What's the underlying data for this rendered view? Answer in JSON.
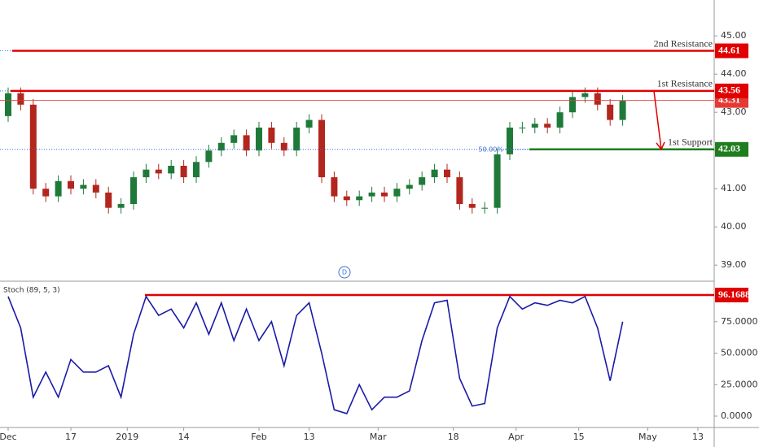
{
  "chart_data": [
    {
      "type": "candlestick",
      "x": [
        0,
        2,
        4,
        6,
        8,
        10,
        12,
        14,
        16,
        18,
        20,
        22,
        24,
        26,
        28,
        30,
        32,
        34,
        36,
        38,
        40,
        42,
        44,
        46,
        48,
        50,
        52,
        54,
        56,
        58,
        60,
        62,
        64,
        66,
        68,
        70,
        72,
        74,
        76,
        78,
        80,
        82,
        84,
        86,
        88,
        90,
        92,
        94,
        96,
        98
      ],
      "open": [
        42.9,
        43.5,
        43.2,
        41.0,
        40.8,
        41.2,
        41.0,
        41.1,
        40.9,
        40.5,
        40.6,
        41.3,
        41.5,
        41.4,
        41.6,
        41.3,
        41.7,
        42.0,
        42.2,
        42.4,
        42.0,
        42.6,
        42.2,
        42.0,
        42.6,
        42.8,
        41.3,
        40.8,
        40.7,
        40.8,
        40.9,
        40.8,
        41.0,
        41.1,
        41.3,
        41.5,
        41.3,
        40.6,
        40.5,
        40.5,
        41.9,
        42.6,
        42.6,
        42.7,
        42.6,
        43.0,
        43.4,
        43.5,
        43.2,
        42.8
      ],
      "high": [
        43.65,
        43.65,
        43.35,
        41.15,
        41.35,
        41.35,
        41.25,
        41.25,
        41.05,
        40.75,
        41.45,
        41.65,
        41.65,
        41.75,
        41.75,
        41.85,
        42.15,
        42.35,
        42.55,
        42.55,
        42.75,
        42.75,
        42.35,
        42.75,
        42.95,
        42.95,
        41.45,
        40.95,
        40.95,
        41.05,
        41.05,
        41.15,
        41.25,
        41.45,
        41.65,
        41.65,
        41.45,
        40.75,
        40.65,
        42.05,
        42.75,
        42.75,
        42.85,
        42.85,
        43.15,
        43.55,
        43.65,
        43.65,
        43.35,
        43.45
      ],
      "low": [
        42.75,
        43.05,
        40.85,
        40.65,
        40.65,
        40.85,
        40.85,
        40.75,
        40.35,
        40.35,
        40.45,
        41.15,
        41.25,
        41.25,
        41.15,
        41.15,
        41.55,
        41.85,
        42.05,
        41.85,
        41.85,
        42.05,
        41.85,
        41.85,
        42.45,
        41.15,
        40.65,
        40.55,
        40.55,
        40.65,
        40.65,
        40.65,
        40.85,
        40.95,
        41.15,
        41.15,
        40.45,
        40.35,
        40.35,
        40.35,
        41.75,
        42.45,
        42.45,
        42.45,
        42.45,
        42.85,
        43.25,
        43.05,
        42.65,
        42.65
      ],
      "close": [
        43.5,
        43.2,
        41.0,
        40.8,
        41.2,
        41.0,
        41.1,
        40.9,
        40.5,
        40.6,
        41.3,
        41.5,
        41.4,
        41.6,
        41.3,
        41.7,
        42.0,
        42.2,
        42.4,
        42.0,
        42.6,
        42.2,
        42.0,
        42.6,
        42.8,
        41.3,
        40.8,
        40.7,
        40.8,
        40.9,
        40.8,
        41.0,
        41.1,
        41.3,
        41.5,
        41.3,
        40.6,
        40.5,
        40.5,
        41.9,
        42.6,
        42.6,
        42.7,
        42.6,
        43.0,
        43.4,
        43.5,
        43.2,
        42.8,
        43.3
      ],
      "up_color": "#1f7a3a",
      "down_color": "#b3261e",
      "xlim": [
        -1.3,
        112.6
      ],
      "ylim": [
        38.6,
        45.94
      ],
      "yticks": [
        {
          "value": 39,
          "label": "39.00"
        },
        {
          "value": 40,
          "label": "40.00"
        },
        {
          "value": 41,
          "label": "41.00"
        },
        {
          "value": 42,
          "label": "42.00"
        },
        {
          "value": 43,
          "label": "43.00"
        },
        {
          "value": 44,
          "label": "44.00"
        },
        {
          "value": 45,
          "label": "45.00"
        }
      ],
      "last_price": {
        "value": 43.31,
        "color": "#e53935"
      },
      "levels": [
        {
          "name": "2nd Resistance",
          "value": 44.61,
          "color": "#e00000"
        },
        {
          "name": "1st Resistance",
          "value": 43.56,
          "color": "#e00000"
        },
        {
          "name": "1st Support",
          "value": 42.03,
          "color": "#1e7d1e"
        }
      ],
      "annotations": [
        "50.00%",
        "D"
      ]
    },
    {
      "type": "line",
      "title": "Stoch (89, 5, 3)",
      "x": [
        0,
        2,
        4,
        6,
        8,
        10,
        12,
        14,
        16,
        18,
        20,
        22,
        24,
        26,
        28,
        30,
        32,
        34,
        36,
        38,
        40,
        42,
        44,
        46,
        48,
        50,
        52,
        54,
        56,
        58,
        60,
        62,
        64,
        66,
        68,
        70,
        72,
        74,
        76,
        78,
        80,
        82,
        84,
        86,
        88,
        90,
        92,
        94,
        96,
        98
      ],
      "values": [
        95,
        70,
        15,
        35,
        15,
        45,
        35,
        35,
        40,
        15,
        65,
        95,
        80,
        85,
        70,
        90,
        65,
        90,
        60,
        85,
        60,
        75,
        40,
        80,
        90,
        50,
        5,
        2,
        25,
        5,
        15,
        15,
        20,
        60,
        90,
        92,
        30,
        8,
        10,
        70,
        95,
        85,
        90,
        88,
        92,
        90,
        95,
        70,
        28,
        75
      ],
      "color": "#1a1aa8",
      "xlim": [
        -1.3,
        112.6
      ],
      "ylim": [
        -8.4,
        106.5
      ],
      "yticks": [
        {
          "value": 0,
          "label": "0.0000"
        },
        {
          "value": 25,
          "label": "25.0000"
        },
        {
          "value": 50,
          "label": "50.0000"
        },
        {
          "value": 75,
          "label": "75.0000"
        }
      ],
      "level": {
        "value": 96.1688,
        "color": "#e00000"
      },
      "xticks": [
        {
          "value": 0,
          "label": "Dec"
        },
        {
          "value": 10,
          "label": "17"
        },
        {
          "value": 19,
          "label": "2019"
        },
        {
          "value": 28,
          "label": "14"
        },
        {
          "value": 40,
          "label": "Feb"
        },
        {
          "value": 48,
          "label": "13"
        },
        {
          "value": 59,
          "label": "Mar"
        },
        {
          "value": 71,
          "label": "18"
        },
        {
          "value": 81,
          "label": "Apr"
        },
        {
          "value": 91,
          "label": "15"
        },
        {
          "value": 102,
          "label": "May"
        },
        {
          "value": 110,
          "label": "13"
        }
      ]
    }
  ]
}
